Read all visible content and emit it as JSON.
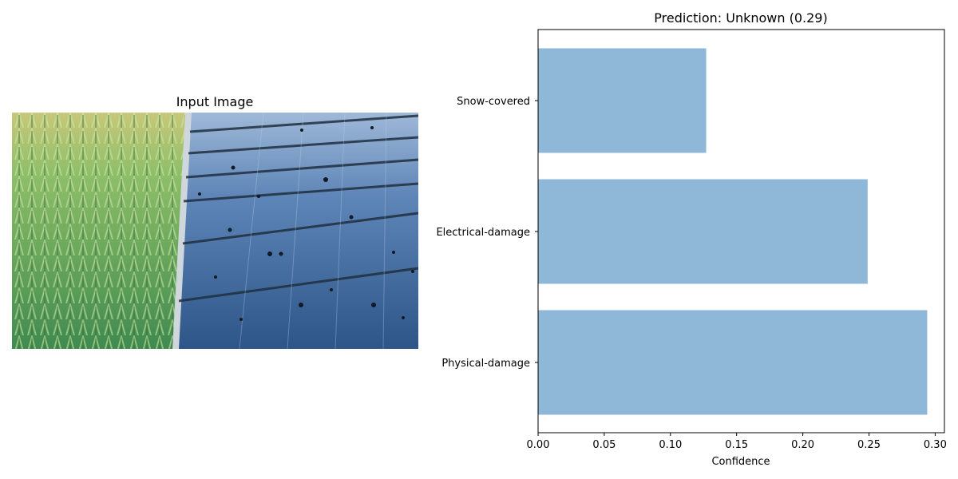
{
  "left_panel": {
    "title": "Input Image"
  },
  "chart_data": {
    "type": "bar",
    "orientation": "horizontal",
    "title": "Prediction: Unknown (0.29)",
    "xlabel": "Confidence",
    "ylabel": "",
    "categories": [
      "Physical-damage",
      "Electrical-damage",
      "Snow-covered"
    ],
    "values": [
      0.294,
      0.249,
      0.127
    ],
    "xlim": [
      0,
      0.307
    ],
    "xticks": [
      0.0,
      0.05,
      0.1,
      0.15,
      0.2,
      0.25,
      0.3
    ],
    "xtick_labels": [
      "0.00",
      "0.05",
      "0.10",
      "0.15",
      "0.20",
      "0.25",
      "0.30"
    ],
    "grid": false,
    "bar_color": "#8fb8d8"
  }
}
